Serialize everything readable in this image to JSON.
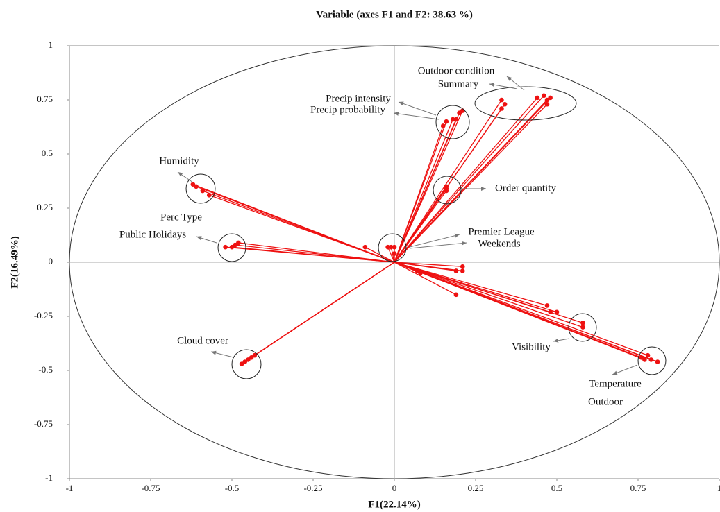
{
  "chart_data": {
    "type": "scatter",
    "title": "Variable (axes F1 and F2: 38.63 %)",
    "xlabel": "F1(22.14%)",
    "ylabel": "F2(16.49%)",
    "color": "#ee1111",
    "x": [
      -0.62,
      -0.61,
      -0.59,
      -0.57,
      -0.52,
      -0.5,
      -0.49,
      -0.48,
      -0.47,
      -0.46,
      -0.45,
      -0.44,
      -0.43,
      0.15,
      0.16,
      0.18,
      0.19,
      0.2,
      0.21,
      0.33,
      0.33,
      0.34,
      0.44,
      0.46,
      0.47,
      0.48,
      0.47,
      0.16,
      0.16,
      0.16,
      -0.02,
      -0.01,
      0.0,
      0.0,
      -0.09,
      0.47,
      0.48,
      0.5,
      0.58,
      0.58,
      0.76,
      0.77,
      0.79,
      0.81,
      0.78,
      0.07,
      0.08,
      0.19,
      0.21,
      0.21,
      0.19
    ],
    "y": [
      0.36,
      0.35,
      0.33,
      0.31,
      0.07,
      0.07,
      0.08,
      0.09,
      -0.47,
      -0.46,
      -0.45,
      -0.44,
      -0.43,
      0.63,
      0.65,
      0.66,
      0.66,
      0.69,
      0.7,
      0.75,
      0.71,
      0.73,
      0.76,
      0.77,
      0.75,
      0.76,
      0.73,
      0.33,
      0.35,
      0.34,
      0.07,
      0.07,
      0.07,
      0.04,
      0.07,
      -0.2,
      -0.23,
      -0.23,
      -0.28,
      -0.3,
      -0.44,
      -0.45,
      -0.45,
      -0.46,
      -0.43,
      -0.04,
      -0.05,
      -0.04,
      -0.04,
      -0.02,
      -0.15
    ],
    "xlim": [
      -1,
      1
    ],
    "ylim": [
      -1,
      1
    ],
    "xticks": [
      -1,
      -0.75,
      -0.5,
      -0.25,
      0,
      0.25,
      0.5,
      0.75,
      1
    ],
    "yticks": [
      -1,
      -0.75,
      -0.5,
      -0.25,
      0,
      0.25,
      0.5,
      0.75,
      1
    ],
    "annotations": [
      "Outdoor condition",
      "Summary",
      "Precip intensity",
      "Precip probability",
      "Humidity",
      "Perc Type",
      "Public Holidays",
      "Order quantity",
      "Premier League",
      "Weekends",
      "Cloud cover",
      "Visibility",
      "Temperature",
      "Outdoor"
    ]
  }
}
